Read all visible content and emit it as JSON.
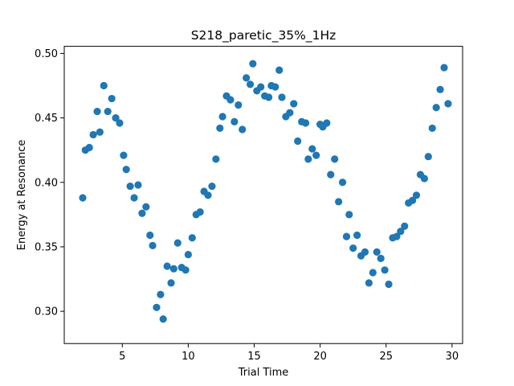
{
  "chart_data": {
    "type": "scatter",
    "title": "S218_paretic_35%_1Hz",
    "xlabel": "Trial Time",
    "ylabel": "Energy at Resonance",
    "xlim": [
      0.6,
      30.8
    ],
    "ylim": [
      0.275,
      0.5055
    ],
    "xticks": [
      5,
      10,
      15,
      20,
      25,
      30
    ],
    "yticks": [
      0.3,
      0.35,
      0.4,
      0.45,
      0.5
    ],
    "xtick_labels": [
      "5",
      "10",
      "15",
      "20",
      "25",
      "30"
    ],
    "ytick_labels": [
      "0.30",
      "0.35",
      "0.40",
      "0.45",
      "0.50"
    ],
    "grid": false,
    "marker_color": "#1f77b4",
    "x": [
      2.0,
      2.2,
      2.5,
      2.8,
      3.1,
      3.3,
      3.6,
      3.9,
      4.2,
      4.5,
      4.8,
      5.1,
      5.3,
      5.6,
      5.9,
      6.2,
      6.5,
      6.8,
      7.1,
      7.3,
      7.6,
      7.9,
      8.1,
      8.4,
      8.7,
      8.9,
      9.2,
      9.5,
      9.8,
      10.0,
      10.3,
      10.6,
      10.9,
      11.2,
      11.5,
      11.8,
      12.1,
      12.4,
      12.6,
      12.9,
      13.2,
      13.5,
      13.8,
      14.1,
      14.4,
      14.7,
      14.9,
      15.2,
      15.5,
      15.8,
      16.1,
      16.3,
      16.6,
      16.9,
      17.1,
      17.4,
      17.7,
      18.0,
      18.3,
      18.6,
      18.9,
      19.1,
      19.4,
      19.7,
      20.0,
      20.2,
      20.5,
      20.8,
      21.1,
      21.4,
      21.7,
      22.0,
      22.2,
      22.5,
      22.8,
      23.1,
      23.4,
      23.7,
      24.0,
      24.3,
      24.6,
      24.9,
      25.2,
      25.5,
      25.8,
      26.1,
      26.4,
      26.7,
      27.0,
      27.3,
      27.6,
      27.9,
      28.2,
      28.5,
      28.8,
      29.1,
      29.4,
      29.7
    ],
    "y": [
      0.388,
      0.425,
      0.427,
      0.437,
      0.455,
      0.439,
      0.475,
      0.455,
      0.465,
      0.45,
      0.446,
      0.421,
      0.41,
      0.397,
      0.388,
      0.398,
      0.376,
      0.381,
      0.359,
      0.351,
      0.303,
      0.313,
      0.294,
      0.335,
      0.322,
      0.333,
      0.353,
      0.334,
      0.332,
      0.344,
      0.357,
      0.375,
      0.377,
      0.393,
      0.39,
      0.397,
      0.418,
      0.442,
      0.451,
      0.467,
      0.464,
      0.447,
      0.46,
      0.441,
      0.481,
      0.476,
      0.492,
      0.471,
      0.474,
      0.467,
      0.466,
      0.475,
      0.474,
      0.487,
      0.466,
      0.451,
      0.454,
      0.461,
      0.432,
      0.447,
      0.446,
      0.418,
      0.426,
      0.421,
      0.445,
      0.443,
      0.446,
      0.406,
      0.418,
      0.385,
      0.4,
      0.358,
      0.375,
      0.349,
      0.359,
      0.343,
      0.346,
      0.322,
      0.33,
      0.346,
      0.341,
      0.332,
      0.321,
      0.357,
      0.358,
      0.362,
      0.366,
      0.384,
      0.386,
      0.39,
      0.406,
      0.403,
      0.42,
      0.442,
      0.458,
      0.472,
      0.489,
      0.461
    ]
  }
}
